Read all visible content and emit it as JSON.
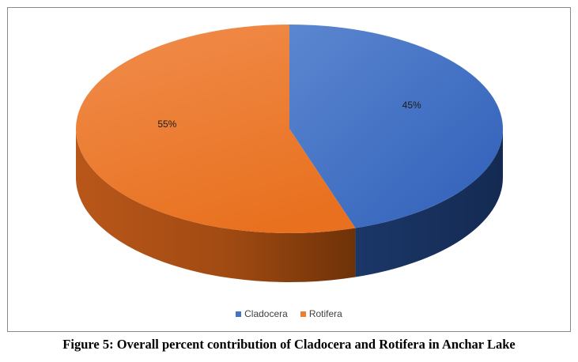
{
  "chart_data": {
    "type": "pie",
    "style": "3d",
    "categories": [
      "Cladocera",
      "Rotifera"
    ],
    "values": [
      45,
      55
    ],
    "data_labels": [
      "45%",
      "55%"
    ],
    "colors": [
      "#4472C4",
      "#ED7D31"
    ],
    "legend_position": "bottom",
    "title": ""
  },
  "caption": "Figure 5: Overall percent contribution of Cladocera and Rotifera in Anchar Lake"
}
